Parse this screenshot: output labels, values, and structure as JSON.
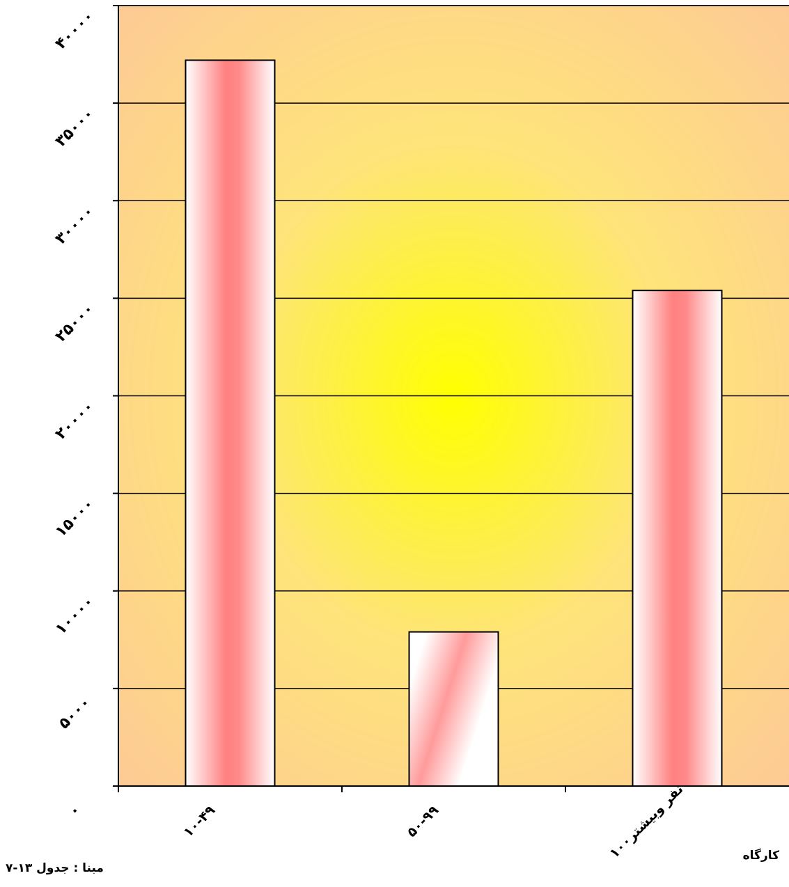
{
  "chart_data": {
    "type": "bar",
    "categories": [
      "۱۰-۴۹",
      "۵۰-۹۹",
      "۱۰۰نفر وبیشتر"
    ],
    "values": [
      37200,
      7900,
      25400
    ],
    "ylim": [
      0,
      40000
    ],
    "yticks": [
      0,
      5000,
      10000,
      15000,
      20000,
      25000,
      30000,
      35000,
      40000
    ],
    "ytick_labels": [
      "۰",
      "۵۰۰۰",
      "۱۰۰۰۰",
      "۱۵۰۰۰",
      "۲۰۰۰۰",
      "۲۵۰۰۰",
      "۳۰۰۰۰",
      "۳۵۰۰۰",
      "۴۰۰۰۰"
    ],
    "grid": true,
    "legend": "none"
  },
  "xaxis_unit": "کارگاه",
  "source_note": "مبنا : جدول ۱۳-۷",
  "colors": {
    "plot_edge": "#fdc996",
    "plot_center": "#ffff00",
    "bar_dark": "#ff8080",
    "bar_light": "#ffffff",
    "axis": "#000000"
  }
}
